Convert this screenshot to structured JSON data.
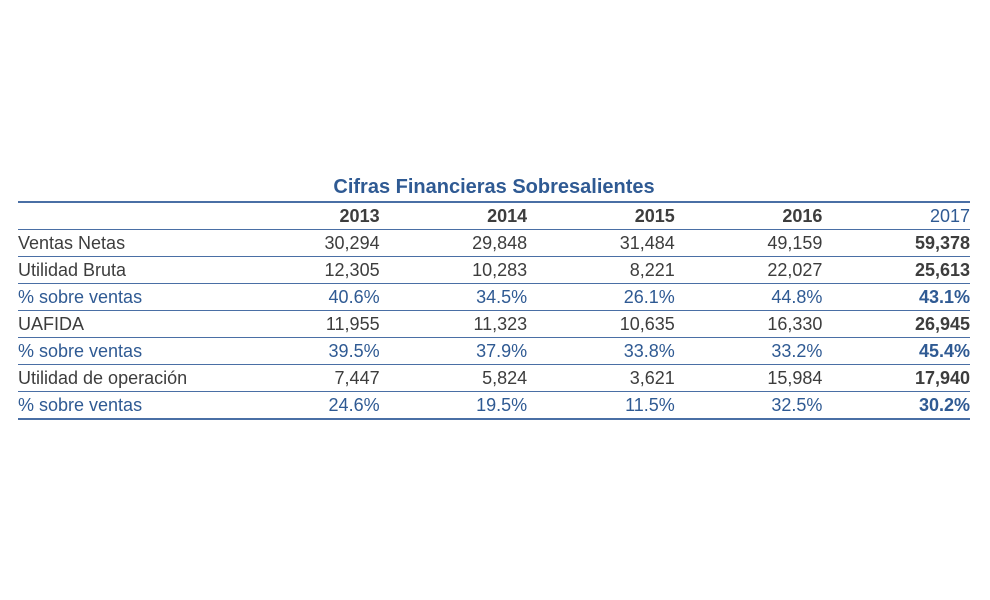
{
  "table": {
    "title": "Cifras Financieras Sobresalientes",
    "columns": [
      "2013",
      "2014",
      "2015",
      "2016",
      "2017"
    ],
    "rows": [
      {
        "label": "Ventas Netas",
        "values": [
          "30,294",
          "29,848",
          "31,484",
          "49,159",
          "59,378"
        ]
      },
      {
        "label": "Utilidad Bruta",
        "values": [
          "12,305",
          "10,283",
          "8,221",
          "22,027",
          "25,613"
        ]
      },
      {
        "label": "% sobre ventas",
        "values": [
          "40.6%",
          "34.5%",
          "26.1%",
          "44.8%",
          "43.1%"
        ]
      },
      {
        "label": "UAFIDA",
        "values": [
          "11,955",
          "11,323",
          "10,635",
          "16,330",
          "26,945"
        ]
      },
      {
        "label": "% sobre ventas",
        "values": [
          "39.5%",
          "37.9%",
          "33.8%",
          "33.2%",
          "45.4%"
        ]
      },
      {
        "label": "Utilidad de operación",
        "values": [
          "7,447",
          "5,824",
          "3,621",
          "15,984",
          "17,940"
        ]
      },
      {
        "label": "% sobre ventas",
        "values": [
          "24.6%",
          "19.5%",
          "11.5%",
          "32.5%",
          "30.2%"
        ]
      }
    ]
  },
  "colors": {
    "accent_blue": "#2f5a93",
    "rule_blue": "#4a6fa5",
    "body_text": "#3d3d3d"
  }
}
